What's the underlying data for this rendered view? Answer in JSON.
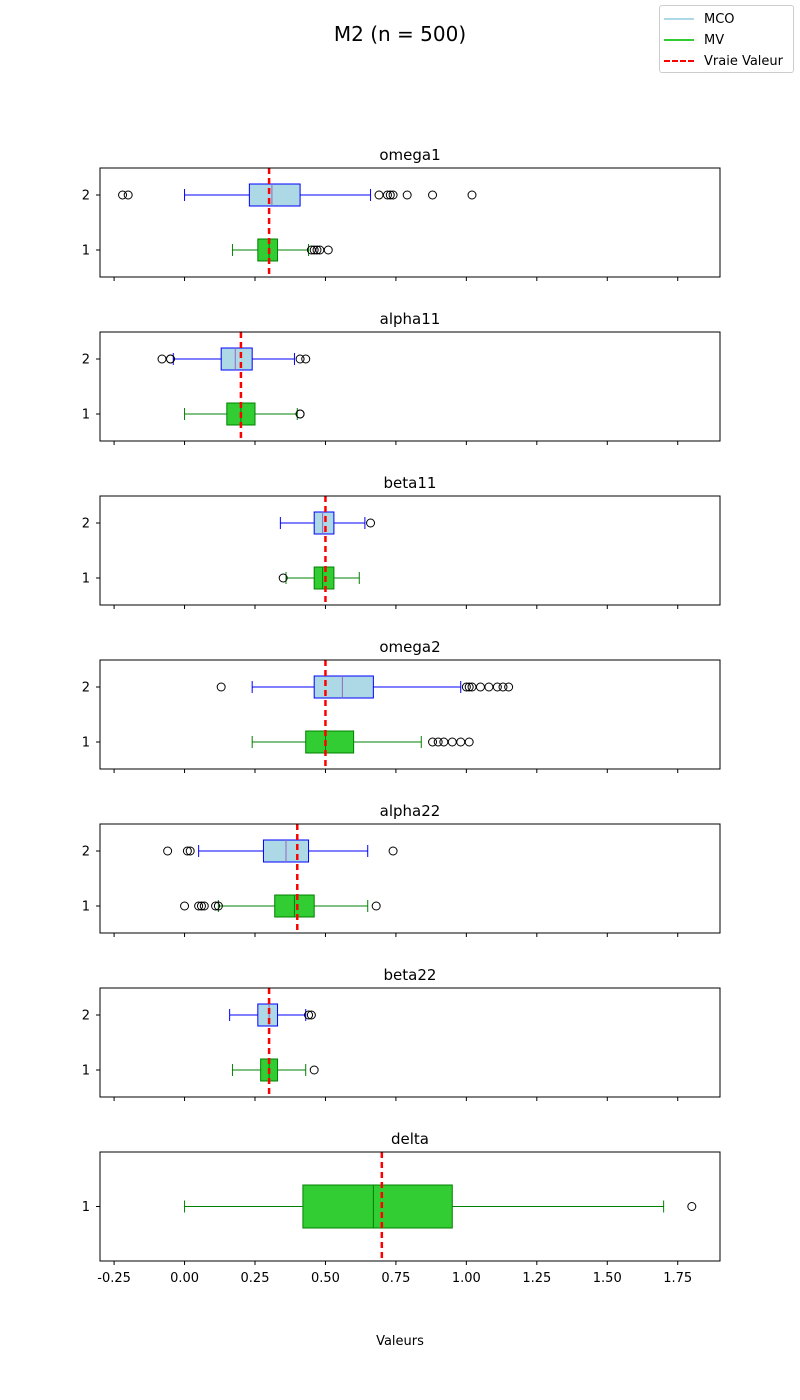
{
  "figure": {
    "title": "M2 (n = 500)",
    "xlabel": "Valeurs"
  },
  "legend": {
    "placement": "top-right",
    "items": [
      {
        "label": "MCO",
        "color": "#add8e6",
        "style": "solid"
      },
      {
        "label": "MV",
        "color": "#32cd32",
        "style": "solid"
      },
      {
        "label": "Vraie Valeur",
        "color": "#ff0000",
        "style": "dashed"
      }
    ]
  },
  "chart_data": {
    "type": "boxplot",
    "orientation": "horizontal",
    "shared_x": true,
    "xlim": [
      -0.3,
      1.9
    ],
    "xticks": [
      "-0.25",
      "0.00",
      "0.25",
      "0.50",
      "0.75",
      "1.00",
      "1.25",
      "1.50",
      "1.75"
    ],
    "xtick_values": [
      -0.25,
      0,
      0.25,
      0.5,
      0.75,
      1.0,
      1.25,
      1.5,
      1.75
    ],
    "grid": false,
    "series_styles": {
      "MCO": {
        "fill": "#add8e6",
        "edge": "#0000ff",
        "median": "#9467bd"
      },
      "MV": {
        "fill": "#32cd32",
        "edge": "#008000",
        "median": "#008000"
      }
    },
    "panels": [
      {
        "title": "omega1",
        "true_value": 0.3,
        "boxes": [
          {
            "label": "2",
            "series": "MCO",
            "whislo": 0.0,
            "q1": 0.23,
            "med": 0.31,
            "q3": 0.41,
            "whishi": 0.66,
            "fliers": [
              -0.22,
              -0.2,
              0.69,
              0.72,
              0.73,
              0.74,
              0.79,
              0.88,
              1.02
            ]
          },
          {
            "label": "1",
            "series": "MV",
            "whislo": 0.17,
            "q1": 0.26,
            "med": 0.3,
            "q3": 0.33,
            "whishi": 0.44,
            "fliers": [
              0.45,
              0.46,
              0.47,
              0.48,
              0.51
            ]
          }
        ]
      },
      {
        "title": "alpha11",
        "true_value": 0.2,
        "boxes": [
          {
            "label": "2",
            "series": "MCO",
            "whislo": -0.04,
            "q1": 0.13,
            "med": 0.18,
            "q3": 0.24,
            "whishi": 0.39,
            "fliers": [
              -0.08,
              -0.05,
              -0.05,
              0.41,
              0.43
            ]
          },
          {
            "label": "1",
            "series": "MV",
            "whislo": 0.0,
            "q1": 0.15,
            "med": 0.2,
            "q3": 0.25,
            "whishi": 0.4,
            "fliers": [
              0.41,
              0.41
            ]
          }
        ]
      },
      {
        "title": "beta11",
        "true_value": 0.5,
        "boxes": [
          {
            "label": "2",
            "series": "MCO",
            "whislo": 0.34,
            "q1": 0.46,
            "med": 0.49,
            "q3": 0.53,
            "whishi": 0.64,
            "fliers": [
              0.66
            ]
          },
          {
            "label": "1",
            "series": "MV",
            "whislo": 0.36,
            "q1": 0.46,
            "med": 0.49,
            "q3": 0.53,
            "whishi": 0.62,
            "fliers": [
              0.35
            ]
          }
        ]
      },
      {
        "title": "omega2",
        "true_value": 0.5,
        "boxes": [
          {
            "label": "2",
            "series": "MCO",
            "whislo": 0.24,
            "q1": 0.46,
            "med": 0.56,
            "q3": 0.67,
            "whishi": 0.98,
            "fliers": [
              0.13,
              1.0,
              1.01,
              1.02,
              1.05,
              1.08,
              1.11,
              1.13,
              1.15
            ]
          },
          {
            "label": "1",
            "series": "MV",
            "whislo": 0.24,
            "q1": 0.43,
            "med": 0.5,
            "q3": 0.6,
            "whishi": 0.84,
            "fliers": [
              0.88,
              0.9,
              0.92,
              0.95,
              0.98,
              1.01
            ]
          }
        ]
      },
      {
        "title": "alpha22",
        "true_value": 0.4,
        "boxes": [
          {
            "label": "2",
            "series": "MCO",
            "whislo": 0.05,
            "q1": 0.28,
            "med": 0.36,
            "q3": 0.44,
            "whishi": 0.65,
            "fliers": [
              -0.06,
              0.01,
              0.02,
              0.74
            ]
          },
          {
            "label": "1",
            "series": "MV",
            "whislo": 0.12,
            "q1": 0.32,
            "med": 0.39,
            "q3": 0.46,
            "whishi": 0.65,
            "fliers": [
              0.0,
              0.05,
              0.06,
              0.07,
              0.11,
              0.12,
              0.68
            ]
          }
        ]
      },
      {
        "title": "beta22",
        "true_value": 0.3,
        "boxes": [
          {
            "label": "2",
            "series": "MCO",
            "whislo": 0.16,
            "q1": 0.26,
            "med": 0.3,
            "q3": 0.33,
            "whishi": 0.43,
            "fliers": [
              0.44,
              0.45
            ]
          },
          {
            "label": "1",
            "series": "MV",
            "whislo": 0.17,
            "q1": 0.27,
            "med": 0.3,
            "q3": 0.33,
            "whishi": 0.43,
            "fliers": [
              0.46
            ]
          }
        ]
      },
      {
        "title": "delta",
        "true_value": 0.7,
        "boxes": [
          {
            "label": "1",
            "series": "MV",
            "whislo": 0.0,
            "q1": 0.42,
            "med": 0.67,
            "q3": 0.95,
            "whishi": 1.7,
            "fliers": [
              1.8
            ]
          }
        ]
      }
    ]
  }
}
